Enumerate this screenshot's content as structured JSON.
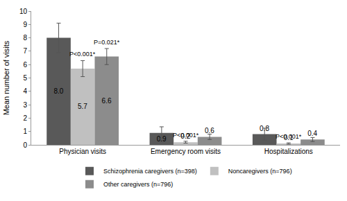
{
  "chart_data": {
    "type": "bar",
    "y_label": "Mean number of visits",
    "categories": [
      "Physician visits",
      "Emergency room visits",
      "Hospitalizations"
    ],
    "series": [
      {
        "name": "Schizophrenia caregivers (n=398)",
        "color": "#595959",
        "values": [
          8.0,
          0.9,
          0.8
        ],
        "value_labels": [
          "8.0",
          "0.9",
          "0.8"
        ],
        "errors": [
          1.1,
          0.45,
          0.45
        ]
      },
      {
        "name": "Noncaregivers (n=796)",
        "color": "#c0c0c0",
        "values": [
          5.7,
          0.2,
          0.1
        ],
        "value_labels": [
          "5.7",
          "0.2",
          "0.1"
        ],
        "errors": [
          0.6,
          0.07,
          0.05
        ]
      },
      {
        "name": "Other caregivers (n=796)",
        "color": "#8c8c8c",
        "values": [
          6.6,
          0.6,
          0.4
        ],
        "value_labels": [
          "6.6",
          "0.6",
          "0.4"
        ],
        "errors": [
          0.6,
          0.2,
          0.15
        ]
      }
    ],
    "annotations": [
      {
        "category": "Physician visits",
        "series": "Noncaregivers (n=796)",
        "text": "P<0.001*"
      },
      {
        "category": "Physician visits",
        "series": "Other caregivers (n=796)",
        "text": "P=0.021*"
      },
      {
        "category": "Emergency room visits",
        "series": "Noncaregivers (n=796)",
        "text": "P<0.001*"
      },
      {
        "category": "Hospitalizations",
        "series": "Noncaregivers (n=796)",
        "text": "P<0.001*"
      }
    ],
    "ylim": [
      0,
      10
    ],
    "yticks": [
      0,
      1,
      2,
      3,
      4,
      5,
      6,
      7,
      8,
      9,
      10
    ],
    "grid": false,
    "data_labels": true,
    "legend": "bottom"
  }
}
